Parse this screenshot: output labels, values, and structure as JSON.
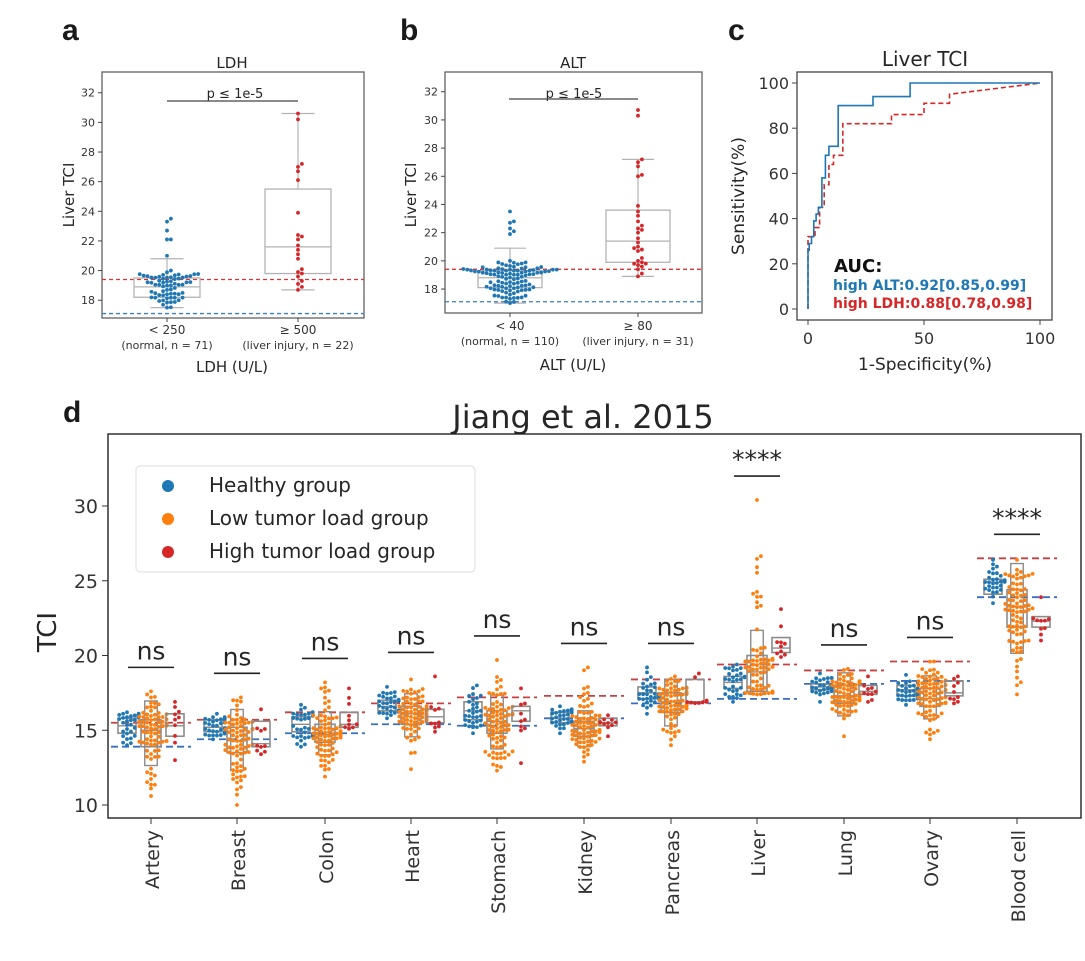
{
  "colors": {
    "blue": "#1f77b4",
    "orange": "#ff7f0e",
    "red": "#d62728",
    "box": "#8c8c8c",
    "ref_red": "#e03030",
    "ref_blue": "#3a7ec4"
  },
  "chart_data": [
    {
      "id": "a",
      "panel_letter": "a",
      "type": "scatter",
      "subtype": "box-swarm",
      "title": "LDH",
      "xlabel": "LDH (U/L)",
      "ylabel": "Liver TCI",
      "ylim": [
        16.8,
        33.4
      ],
      "yticks": [
        18,
        20,
        22,
        24,
        26,
        28,
        30,
        32
      ],
      "categories": [
        {
          "label": "< 250",
          "sublabel": "(normal, n = 71)",
          "color": "blue",
          "n": 71,
          "box": {
            "q1": 18.2,
            "median": 18.9,
            "q3": 19.5,
            "whislo": 17.5,
            "whishi": 20.8
          },
          "outliers": [
            21.0,
            22.1,
            22.1,
            22.7,
            23.3,
            23.5
          ]
        },
        {
          "label": "≥ 500",
          "sublabel": "(liver injury, n = 22)",
          "color": "red",
          "n": 22,
          "box": {
            "q1": 19.8,
            "median": 21.6,
            "q3": 25.5,
            "whislo": 18.7,
            "whishi": 30.6
          },
          "points": [
            18.7,
            18.9,
            19.1,
            19.3,
            19.6,
            19.8,
            19.9,
            20.1,
            20.8,
            21.1,
            21.4,
            21.7,
            22.1,
            22.3,
            22.4,
            23.9,
            26.1,
            26.7,
            27.0,
            27.2,
            30.2,
            30.6
          ]
        }
      ],
      "reference_lines": [
        {
          "y": 19.4,
          "color": "red"
        },
        {
          "y": 17.1,
          "color": "blue"
        }
      ],
      "significance": "p ≤ 1e-5"
    },
    {
      "id": "b",
      "panel_letter": "b",
      "type": "scatter",
      "subtype": "box-swarm",
      "title": "ALT",
      "xlabel": "ALT (U/L)",
      "ylabel": "Liver TCI",
      "ylim": [
        16.3,
        33.4
      ],
      "yticks": [
        18,
        20,
        22,
        24,
        26,
        28,
        30,
        32
      ],
      "categories": [
        {
          "label": "< 40",
          "sublabel": "(normal, n = 110)",
          "color": "blue",
          "n": 110,
          "box": {
            "q1": 18.1,
            "median": 18.8,
            "q3": 19.3,
            "whislo": 17.0,
            "whishi": 20.9
          },
          "outliers": [
            21.9,
            22.1,
            22.3,
            22.7,
            22.8,
            23.5
          ]
        },
        {
          "label": "≥ 80",
          "sublabel": "(liver injury, n = 31)",
          "color": "red",
          "n": 31,
          "box": {
            "q1": 19.9,
            "median": 21.4,
            "q3": 23.6,
            "whislo": 18.9,
            "whishi": 27.2
          },
          "points": [
            18.9,
            19.1,
            19.4,
            19.6,
            19.7,
            19.8,
            19.8,
            19.9,
            20.0,
            20.2,
            20.7,
            20.8,
            20.9,
            21.0,
            21.3,
            21.6,
            22.0,
            22.2,
            22.3,
            22.5,
            22.8,
            23.2,
            23.5,
            23.9,
            26.0,
            26.1,
            26.7,
            27.0,
            27.2,
            30.3,
            30.7
          ]
        }
      ],
      "reference_lines": [
        {
          "y": 19.4,
          "color": "red"
        },
        {
          "y": 17.1,
          "color": "blue"
        }
      ],
      "significance": "p ≤ 1e-5"
    },
    {
      "id": "c",
      "panel_letter": "c",
      "type": "line",
      "title": "Liver TCI",
      "xlabel": "1-Specificity(%)",
      "ylabel": "Sensitivity(%)",
      "xlim": [
        -5,
        105
      ],
      "ylim": [
        -5,
        105
      ],
      "xticks": [
        0,
        50,
        100
      ],
      "yticks": [
        0,
        20,
        40,
        60,
        80,
        100
      ],
      "annotation_title": "AUC:",
      "series": [
        {
          "name": "high ALT",
          "label": "high ALT:0.92[0.85,0.99]",
          "color": "blue",
          "style": "solid",
          "x": [
            0,
            0,
            0.5,
            0.5,
            1.5,
            1.5,
            2.5,
            2.5,
            3.5,
            3.5,
            4.5,
            4.5,
            6,
            6,
            7.5,
            7.5,
            9,
            9,
            13,
            13,
            28,
            28,
            44,
            44,
            100
          ],
          "y": [
            0,
            26,
            26,
            29,
            29,
            32,
            32,
            39,
            39,
            42,
            42,
            45,
            45,
            58,
            58,
            68,
            68,
            72,
            72,
            90,
            90,
            94,
            94,
            100,
            100
          ]
        },
        {
          "name": "high LDH",
          "label": "high LDH:0.88[0.78,0.98]",
          "color": "red",
          "style": "dashed",
          "x": [
            0,
            0,
            3,
            3,
            5,
            5,
            7,
            7,
            9,
            9,
            11,
            11,
            15,
            15,
            36,
            36,
            50,
            50,
            61,
            61,
            100
          ],
          "y": [
            0,
            32,
            32,
            36,
            36,
            45,
            45,
            55,
            55,
            64,
            64,
            68,
            68,
            82,
            82,
            86,
            86,
            91,
            91,
            95,
            100
          ]
        }
      ]
    },
    {
      "id": "d",
      "panel_letter": "d",
      "type": "scatter",
      "subtype": "boxen-swarm",
      "title": "Jiang et al. 2015",
      "xlabel": "",
      "ylabel": "TCI",
      "ylim": [
        9.1,
        34.8
      ],
      "yticks": [
        10,
        15,
        20,
        25,
        30
      ],
      "legend": {
        "placement": "top-left",
        "entries": [
          {
            "label": "Healthy group",
            "color": "blue"
          },
          {
            "label": "Low tumor load group",
            "color": "orange"
          },
          {
            "label": "High tumor load group",
            "color": "red"
          }
        ]
      },
      "categories": [
        {
          "label": "Artery",
          "sig": "ns",
          "ref_red": 15.5,
          "ref_blue": 13.9,
          "healthy": {
            "median": 15.3,
            "q1": 14.8,
            "q3": 15.8,
            "min": 14.0,
            "max": 16.2
          },
          "low": {
            "median": 15.0,
            "q1": 13.9,
            "q3": 15.7,
            "min": 10.6,
            "max": 17.6
          },
          "high": {
            "median": 15.3,
            "q1": 14.6,
            "q3": 16.1,
            "min": 13.0,
            "max": 16.9
          }
        },
        {
          "label": "Breast",
          "sig": "ns",
          "ref_red": 15.7,
          "ref_blue": 14.4,
          "healthy": {
            "median": 15.2,
            "q1": 14.9,
            "q3": 15.7,
            "min": 14.4,
            "max": 16.1
          },
          "low": {
            "median": 14.3,
            "q1": 13.5,
            "q3": 15.2,
            "min": 10.0,
            "max": 17.2
          },
          "high": {
            "median": 14.1,
            "q1": 13.9,
            "q3": 15.6,
            "min": 13.4,
            "max": 16.4
          }
        },
        {
          "label": "Colon",
          "sig": "ns",
          "ref_red": 16.2,
          "ref_blue": 14.8,
          "healthy": {
            "median": 15.4,
            "q1": 14.9,
            "q3": 15.9,
            "min": 13.9,
            "max": 16.7
          },
          "low": {
            "median": 14.7,
            "q1": 14.2,
            "q3": 15.4,
            "min": 11.9,
            "max": 18.2
          },
          "high": {
            "median": 15.4,
            "q1": 15.2,
            "q3": 16.2,
            "min": 15.1,
            "max": 17.8
          }
        },
        {
          "label": "Heart",
          "sig": "ns",
          "ref_red": 16.8,
          "ref_blue": 15.4,
          "healthy": {
            "median": 16.6,
            "q1": 16.3,
            "q3": 17.0,
            "min": 15.8,
            "max": 17.9
          },
          "low": {
            "median": 16.1,
            "q1": 15.4,
            "q3": 16.6,
            "min": 12.4,
            "max": 18.4
          },
          "high": {
            "median": 15.9,
            "q1": 15.5,
            "q3": 16.4,
            "min": 14.9,
            "max": 18.6
          }
        },
        {
          "label": "Stomach",
          "sig": "ns",
          "ref_red": 17.2,
          "ref_blue": 15.3,
          "healthy": {
            "median": 16.3,
            "q1": 15.7,
            "q3": 16.9,
            "min": 14.8,
            "max": 18.0
          },
          "low": {
            "median": 15.6,
            "q1": 14.8,
            "q3": 16.3,
            "min": 12.3,
            "max": 19.7
          },
          "high": {
            "median": 16.3,
            "q1": 15.6,
            "q3": 16.6,
            "min": 12.8,
            "max": 17.8
          }
        },
        {
          "label": "Kidney",
          "sig": "ns",
          "ref_red": 17.3,
          "ref_blue": 15.8,
          "healthy": {
            "median": 15.8,
            "q1": 15.5,
            "q3": 16.2,
            "min": 14.8,
            "max": 16.6
          },
          "low": {
            "median": 15.1,
            "q1": 14.6,
            "q3": 15.6,
            "min": 12.9,
            "max": 19.2
          },
          "high": {
            "median": 15.5,
            "q1": 15.3,
            "q3": 15.8,
            "min": 14.6,
            "max": 16.0
          }
        },
        {
          "label": "Pancreas",
          "sig": "ns",
          "ref_red": 18.4,
          "ref_blue": 16.8,
          "healthy": {
            "median": 17.5,
            "q1": 17.1,
            "q3": 17.9,
            "min": 16.1,
            "max": 19.2
          },
          "low": {
            "median": 16.9,
            "q1": 16.2,
            "q3": 17.5,
            "min": 14.0,
            "max": 18.6
          },
          "high": {
            "median": 16.8,
            "q1": 16.9,
            "q3": 18.4,
            "min": 16.9,
            "max": 18.8
          }
        },
        {
          "label": "Liver",
          "sig": "****",
          "ref_red": 19.4,
          "ref_blue": 17.1,
          "healthy": {
            "median": 18.2,
            "q1": 17.8,
            "q3": 18.6,
            "min": 16.9,
            "max": 19.4
          },
          "low": {
            "median": 18.9,
            "q1": 17.6,
            "q3": 20.0,
            "min": 17.4,
            "max": 30.4
          },
          "high": {
            "median": 20.5,
            "q1": 20.2,
            "q3": 21.2,
            "min": 19.9,
            "max": 23.1
          }
        },
        {
          "label": "Lung",
          "sig": "ns",
          "ref_red": 19.0,
          "ref_blue": 18.1,
          "healthy": {
            "median": 17.9,
            "q1": 17.7,
            "q3": 18.1,
            "min": 16.9,
            "max": 18.8
          },
          "low": {
            "median": 17.3,
            "q1": 16.8,
            "q3": 18.0,
            "min": 14.6,
            "max": 19.1
          },
          "high": {
            "median": 17.6,
            "q1": 17.4,
            "q3": 18.0,
            "min": 16.9,
            "max": 18.6
          }
        },
        {
          "label": "Ovary",
          "sig": "ns",
          "ref_red": 19.6,
          "ref_blue": 18.3,
          "healthy": {
            "median": 17.7,
            "q1": 17.3,
            "q3": 18.0,
            "min": 16.7,
            "max": 18.7
          },
          "low": {
            "median": 17.1,
            "q1": 16.6,
            "q3": 17.8,
            "min": 14.4,
            "max": 19.6
          },
          "high": {
            "median": 17.5,
            "q1": 17.3,
            "q3": 18.3,
            "min": 16.8,
            "max": 18.6
          }
        },
        {
          "label": "Blood cell",
          "sig": "****",
          "ref_red": 26.5,
          "ref_blue": 23.9,
          "healthy": {
            "median": 24.9,
            "q1": 24.1,
            "q3": 25.1,
            "min": 23.5,
            "max": 26.4
          },
          "low": {
            "median": 23.3,
            "q1": 21.9,
            "q3": 24.4,
            "min": 17.4,
            "max": 26.4
          },
          "high": {
            "median": 22.3,
            "q1": 21.9,
            "q3": 22.6,
            "min": 21.0,
            "max": 23.9
          }
        }
      ]
    }
  ]
}
